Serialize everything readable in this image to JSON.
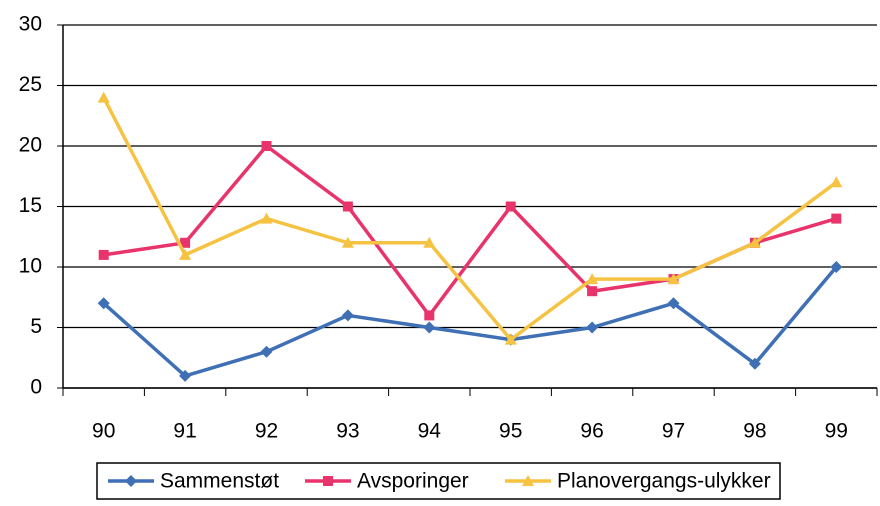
{
  "chart_data": {
    "type": "line",
    "categories": [
      "90",
      "91",
      "92",
      "93",
      "94",
      "95",
      "96",
      "97",
      "98",
      "99"
    ],
    "series": [
      {
        "name": "Sammenstøt",
        "color": "#3f6fb5",
        "marker": "diamond",
        "values": [
          7,
          1,
          3,
          6,
          5,
          4,
          5,
          7,
          2,
          10
        ]
      },
      {
        "name": "Avsporinger",
        "color": "#e8336b",
        "marker": "square",
        "values": [
          11,
          12,
          20,
          15,
          6,
          15,
          8,
          9,
          12,
          14
        ]
      },
      {
        "name": "Planovergangs-ulykker",
        "color": "#f5c242",
        "marker": "triangle",
        "values": [
          24,
          11,
          14,
          12,
          12,
          4,
          9,
          9,
          12,
          17
        ]
      }
    ],
    "ylim": [
      0,
      30
    ],
    "yticks": [
      0,
      5,
      10,
      15,
      20,
      25,
      30
    ],
    "grid": true
  }
}
